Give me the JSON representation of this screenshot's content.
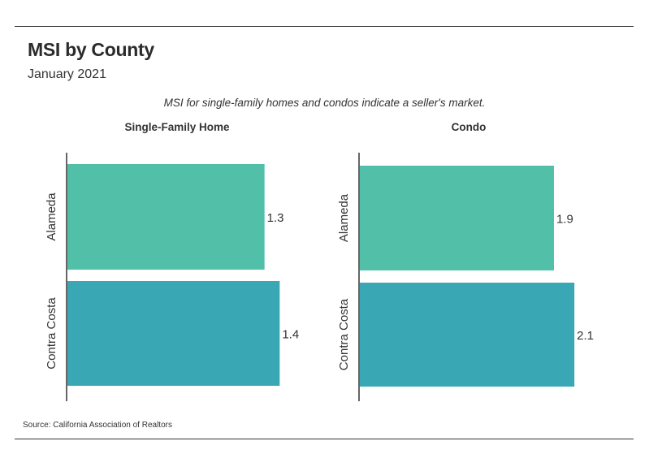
{
  "header": {
    "title": "MSI by County",
    "subtitle": "January 2021"
  },
  "note": "MSI for single-family homes and condos indicate a seller's market.",
  "footer": {
    "source": "Source:  California Association of Realtors"
  },
  "colors": {
    "alameda": "#52bfa9",
    "contra_costa": "#3aa7b4",
    "axis": "#333333",
    "text": "#333333"
  },
  "chart_data": [
    {
      "type": "bar",
      "orientation": "horizontal",
      "title": "Single-Family Home",
      "categories": [
        "Alameda",
        "Contra Costa"
      ],
      "values": [
        1.3,
        1.4
      ],
      "xlim": [
        0,
        1.5
      ]
    },
    {
      "type": "bar",
      "orientation": "horizontal",
      "title": "Condo",
      "categories": [
        "Alameda",
        "Contra Costa"
      ],
      "values": [
        1.9,
        2.1
      ],
      "xlim": [
        0,
        2.25
      ]
    }
  ]
}
